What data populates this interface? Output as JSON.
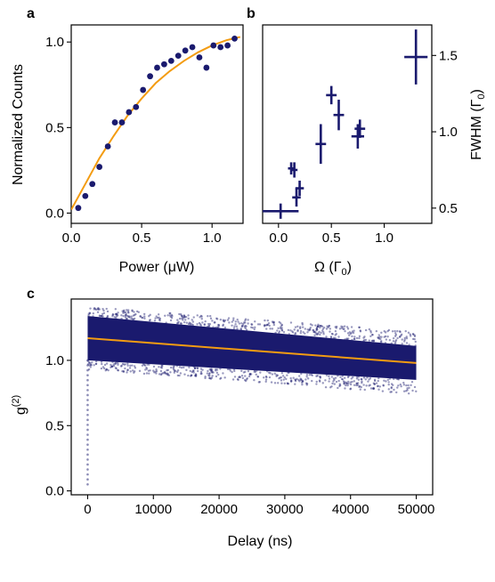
{
  "colors": {
    "points": "#1a1a6e",
    "fit": "#f39c12",
    "scatter": "#1a1a6e"
  },
  "panels": {
    "a": {
      "label": "a"
    },
    "b": {
      "label": "b"
    },
    "c": {
      "label": "c"
    }
  },
  "chart_data": [
    {
      "id": "a",
      "type": "scatter",
      "xlabel": "Power (μW)",
      "ylabel": "Normalized Counts",
      "xlim": [
        0,
        1.22
      ],
      "ylim": [
        -0.06,
        1.1
      ],
      "xticks": [
        "0.0",
        "0.5",
        "1.0"
      ],
      "xtick_values": [
        0,
        0.5,
        1.0
      ],
      "yticks": [
        "0.0",
        "0.5",
        "1.0"
      ],
      "ytick_values": [
        0,
        0.5,
        1.0
      ],
      "series": [
        {
          "kind": "points",
          "x": [
            0.05,
            0.1,
            0.15,
            0.2,
            0.26,
            0.31,
            0.36,
            0.41,
            0.46,
            0.51,
            0.56,
            0.61,
            0.66,
            0.71,
            0.76,
            0.81,
            0.86,
            0.91,
            0.96,
            1.01,
            1.06,
            1.11,
            1.16
          ],
          "y": [
            0.03,
            0.1,
            0.17,
            0.27,
            0.39,
            0.53,
            0.53,
            0.59,
            0.62,
            0.72,
            0.8,
            0.85,
            0.87,
            0.89,
            0.92,
            0.95,
            0.97,
            0.91,
            0.85,
            0.98,
            0.97,
            0.98,
            1.02
          ]
        },
        {
          "kind": "fit",
          "x": [
            0.0,
            0.1,
            0.2,
            0.3,
            0.4,
            0.5,
            0.6,
            0.7,
            0.8,
            0.9,
            1.0,
            1.1,
            1.2
          ],
          "y": [
            0.02,
            0.17,
            0.32,
            0.45,
            0.57,
            0.67,
            0.76,
            0.83,
            0.89,
            0.94,
            0.98,
            1.01,
            1.03
          ]
        }
      ]
    },
    {
      "id": "b",
      "type": "scatter",
      "xlabel": "Ω (Γ0)",
      "ylabel": "FWHM (Γ0)",
      "xlim": [
        -0.15,
        1.45
      ],
      "ylim": [
        0.4,
        1.7
      ],
      "xticks": [
        "0.0",
        "0.5",
        "1.0"
      ],
      "xtick_values": [
        0,
        0.5,
        1.0
      ],
      "yticks": [
        "0.5",
        "1.0",
        "1.5"
      ],
      "ytick_values": [
        0.5,
        1.0,
        1.5
      ],
      "series": [
        {
          "kind": "errorbar",
          "x": [
            0.02,
            0.12,
            0.15,
            0.17,
            0.2,
            0.4,
            0.5,
            0.57,
            0.75,
            0.77,
            1.3
          ],
          "y": [
            0.48,
            0.76,
            0.75,
            0.57,
            0.63,
            0.92,
            1.24,
            1.11,
            0.97,
            1.02,
            1.49
          ],
          "xerr": [
            0.17,
            0.03,
            0.03,
            0.04,
            0.04,
            0.05,
            0.05,
            0.05,
            0.06,
            0.05,
            0.11
          ],
          "yerr": [
            0.05,
            0.04,
            0.05,
            0.06,
            0.05,
            0.13,
            0.06,
            0.1,
            0.08,
            0.06,
            0.18
          ]
        }
      ]
    },
    {
      "id": "c",
      "type": "scatter",
      "xlabel": "Delay (ns)",
      "ylabel": "g(2)",
      "xlim": [
        -2500,
        52500
      ],
      "ylim": [
        -0.03,
        1.47
      ],
      "xticks": [
        "0",
        "10000",
        "20000",
        "30000",
        "40000",
        "50000"
      ],
      "xtick_values": [
        0,
        10000,
        20000,
        30000,
        40000,
        50000
      ],
      "yticks": [
        "0.0",
        "0.5",
        "1.0"
      ],
      "ytick_values": [
        0,
        0.5,
        1.0
      ],
      "band": {
        "x": [
          0,
          50000
        ],
        "center": [
          1.17,
          0.98
        ],
        "half_width": [
          0.17,
          0.13
        ],
        "max_outlier": 0.24
      },
      "dip": {
        "x": 0,
        "y_min": 0.05,
        "y_max": 1.0
      },
      "fit": {
        "x": [
          0,
          50000
        ],
        "y": [
          1.17,
          0.98
        ]
      }
    }
  ]
}
